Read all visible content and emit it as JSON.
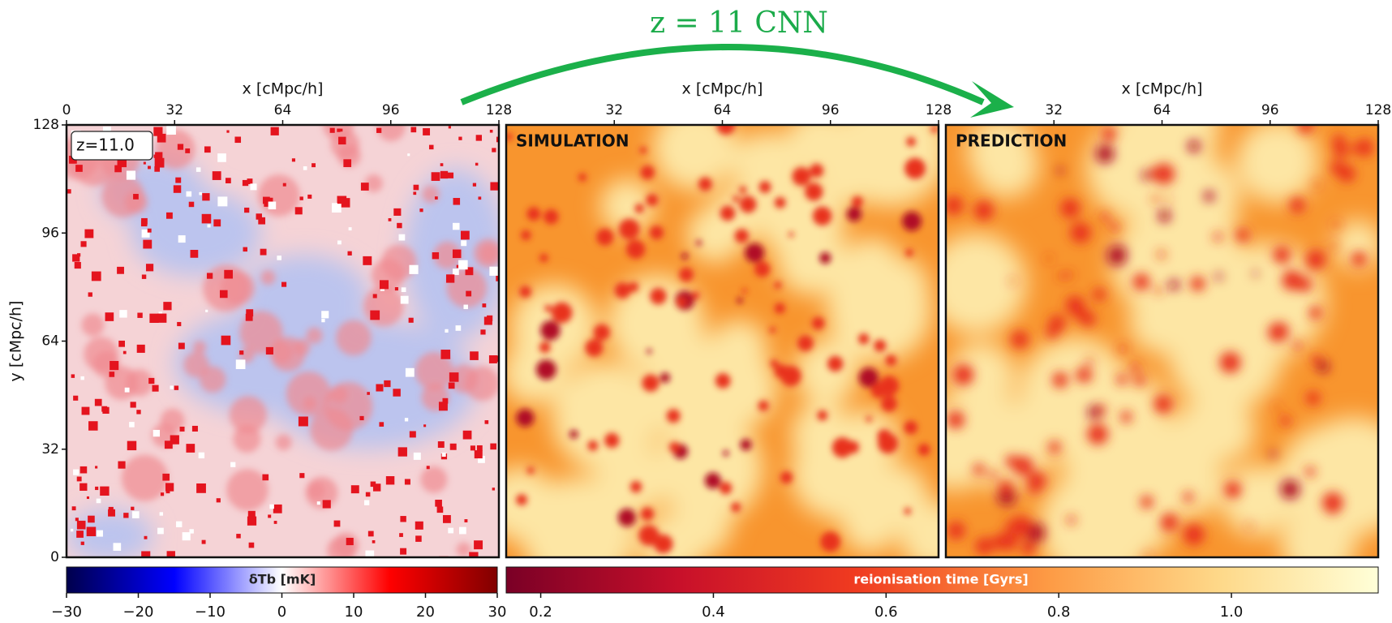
{
  "title": "z = 11 CNN",
  "chart_data": [
    {
      "type": "heatmap",
      "xlabel": "x [cMpc/h]",
      "ylabel": "y [cMpc/h]",
      "xlim": [
        0,
        128
      ],
      "ylim": [
        0,
        128
      ],
      "xticks": [
        0,
        32,
        64,
        96,
        128
      ],
      "yticks": [
        0,
        32,
        64,
        96,
        128
      ],
      "annotation": "z=11.0",
      "colorbar": {
        "label": "δTb [mK]",
        "colormap": "seismic",
        "lim": [
          -30,
          30
        ],
        "ticks": [
          {
            "value": -30,
            "label": "−30"
          },
          {
            "value": -20,
            "label": "−20"
          },
          {
            "value": -10,
            "label": "−10"
          },
          0,
          10,
          20,
          30
        ]
      }
    },
    {
      "type": "heatmap",
      "xlabel": "x [cMpc/h]",
      "xlim": [
        0,
        128
      ],
      "xticks": [
        32,
        64,
        96,
        128
      ],
      "annotation": "SIMULATION",
      "colorbar": {
        "label": "reionisation time [Gyrs]",
        "colormap": "YlOrRd_r",
        "lim": [
          0.16,
          1.17
        ],
        "ticks": [
          0.2,
          0.4,
          0.6,
          0.8,
          {
            "value": 1,
            "label": "1.0"
          }
        ]
      }
    },
    {
      "type": "heatmap",
      "xlabel": "x [cMpc/h]",
      "xlim": [
        0,
        128
      ],
      "xticks": [
        32,
        64,
        96,
        128
      ],
      "annotation": "PREDICTION"
    }
  ]
}
